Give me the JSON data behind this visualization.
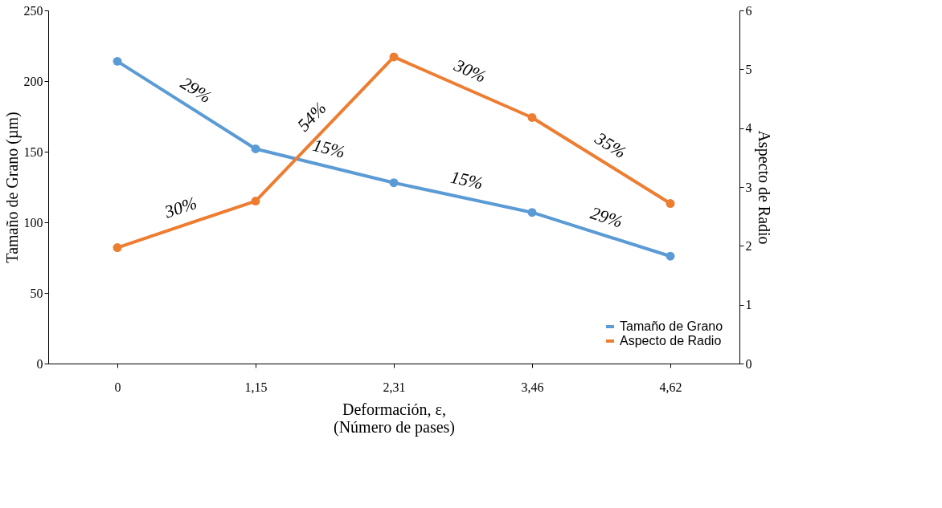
{
  "chart_data": {
    "type": "line",
    "xlabel": "Deformación, ε,\n(Número de pases)",
    "ylabel": "Tamaño de Grano (µm)",
    "y2label": "Aspecto de Radio",
    "categories": [
      "0",
      "1,15",
      "2,31",
      "3,46",
      "4,62"
    ],
    "series": [
      {
        "name": "Tamaño de Grano",
        "color": "#5b9bd5",
        "values": [
          214,
          152,
          128,
          107,
          76
        ]
      },
      {
        "name": "Aspecto de Radio",
        "color": "#ed7d31",
        "axis": "y2",
        "values": [
          1.97,
          2.76,
          5.21,
          4.18,
          2.72
        ]
      }
    ],
    "ylim": [
      0,
      250
    ],
    "yticks": [
      0,
      50,
      100,
      150,
      200,
      250
    ],
    "y2lim": [
      0,
      6
    ],
    "y2ticks": [
      0,
      1,
      2,
      3,
      4,
      5,
      6
    ],
    "annotations": [
      "29%",
      "15%",
      "15%",
      "29%",
      "30%",
      "54%",
      "30%",
      "35%"
    ],
    "legend": "bottom right",
    "grid": false,
    "marker": "circle",
    "line_style": "solid"
  }
}
